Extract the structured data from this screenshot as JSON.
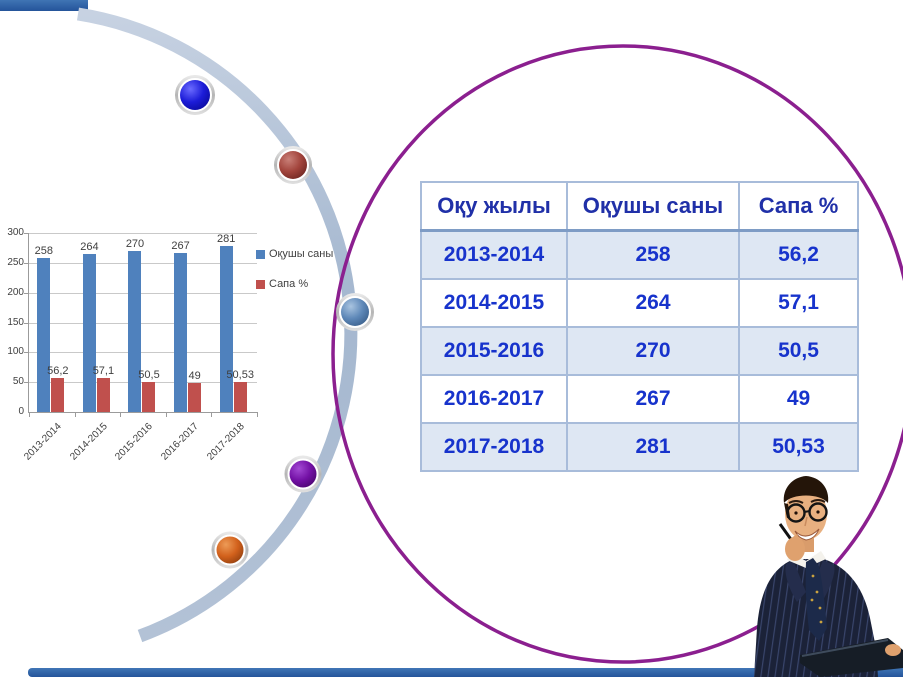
{
  "slide": {
    "background_color": "#FFFFFF",
    "theme_accent_color": "#2E66AC"
  },
  "chart_data": {
    "type": "bar",
    "title": "",
    "xlabel": "",
    "ylabel": "",
    "categories": [
      "2013-2014",
      "2014-2015",
      "2015-2016",
      "2016-2017",
      "2017-2018"
    ],
    "series": [
      {
        "name": "Оқушы саны",
        "color": "#4F81BD",
        "values": [
          258,
          264,
          270,
          267,
          281
        ],
        "labels": [
          "258",
          "264",
          "270",
          "267",
          "281"
        ]
      },
      {
        "name": "Сапа %",
        "color": "#C0504D",
        "values": [
          56.2,
          57.1,
          50.5,
          49,
          50.53
        ],
        "labels": [
          "56,2",
          "57,1",
          "50,5",
          "49",
          "50,53"
        ]
      }
    ],
    "ylim": [
      0,
      300
    ],
    "ytick_step": 50,
    "yticks": [
      "300",
      "250",
      "200",
      "150",
      "100",
      "50",
      "0"
    ],
    "grid": true,
    "legend_position": "right"
  },
  "table": {
    "columns": [
      "Оқу жылы",
      "Оқушы саны",
      "Сапа %"
    ],
    "rows": [
      [
        "2013-2014",
        "258",
        "56,2"
      ],
      [
        "2014-2015",
        "264",
        "57,1"
      ],
      [
        "2015-2016",
        "270",
        "50,5"
      ],
      [
        "2016-2017",
        "267",
        "49"
      ],
      [
        "2017-2018",
        "281",
        "50,53"
      ]
    ],
    "header_text_color": "#2030A8",
    "cell_text_color": "#1733CC",
    "row_alt_bg": "#DEE7F3",
    "border_color": "#A8BCDA"
  },
  "decor": {
    "arc_color": "#ABBCD3",
    "ellipse_color": "#8B1F8F",
    "edge_bar_color": "#2E66AC",
    "buttons": [
      {
        "name": "blue-sphere",
        "color": "#1C1CD8"
      },
      {
        "name": "red-sphere",
        "color": "#A2443C"
      },
      {
        "name": "steel-blue-sphere",
        "color": "#5E88B8"
      },
      {
        "name": "purple-sphere",
        "color": "#7311A5"
      },
      {
        "name": "orange-sphere",
        "color": "#D2611C"
      }
    ],
    "photo": "businessman-with-glasses-pen-and-laptop"
  }
}
